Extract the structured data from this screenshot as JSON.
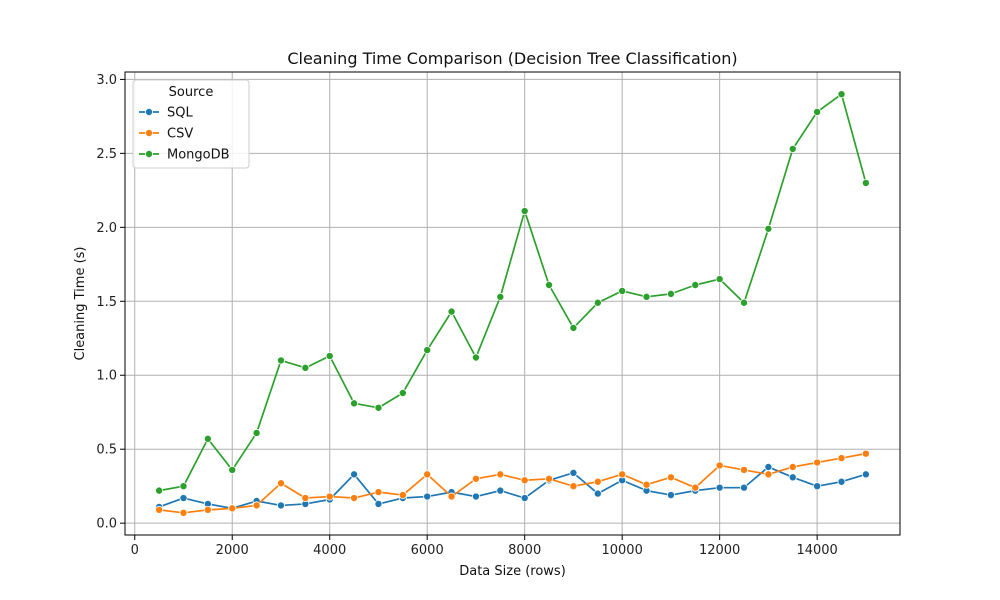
{
  "chart_data": {
    "type": "line",
    "title": "Cleaning Time Comparison (Decision Tree Classification)",
    "xlabel": "Data Size (rows)",
    "ylabel": "Cleaning Time (s)",
    "xlim": [
      -200,
      15700
    ],
    "ylim": [
      -0.08,
      3.05
    ],
    "xticks": [
      0,
      2000,
      4000,
      6000,
      8000,
      10000,
      12000,
      14000
    ],
    "xtick_labels": [
      "0",
      "2000",
      "4000",
      "6000",
      "8000",
      "10000",
      "12000",
      "14000"
    ],
    "yticks": [
      0.0,
      0.5,
      1.0,
      1.5,
      2.0,
      2.5,
      3.0
    ],
    "ytick_labels": [
      "0.0",
      "0.5",
      "1.0",
      "1.5",
      "2.0",
      "2.5",
      "3.0"
    ],
    "grid": true,
    "legend": {
      "title": "Source",
      "placement": "top-left"
    },
    "x": [
      500,
      1000,
      1500,
      2000,
      2500,
      3000,
      3500,
      4000,
      4500,
      5000,
      5500,
      6000,
      6500,
      7000,
      7500,
      8000,
      8500,
      9000,
      9500,
      10000,
      10500,
      11000,
      11500,
      12000,
      12500,
      13000,
      13500,
      14000,
      14500,
      15000
    ],
    "series": [
      {
        "name": "SQL",
        "color": "#1f77b4",
        "values": [
          0.11,
          0.17,
          0.13,
          0.1,
          0.15,
          0.12,
          0.13,
          0.16,
          0.33,
          0.13,
          0.17,
          0.18,
          0.21,
          0.18,
          0.22,
          0.17,
          0.29,
          0.34,
          0.2,
          0.29,
          0.22,
          0.19,
          0.22,
          0.24,
          0.24,
          0.38,
          0.31,
          0.25,
          0.28,
          0.33
        ]
      },
      {
        "name": "CSV",
        "color": "#ff7f0e",
        "values": [
          0.09,
          0.07,
          0.09,
          0.1,
          0.12,
          0.27,
          0.17,
          0.18,
          0.17,
          0.21,
          0.19,
          0.33,
          0.18,
          0.3,
          0.33,
          0.29,
          0.3,
          0.25,
          0.28,
          0.33,
          0.26,
          0.31,
          0.24,
          0.39,
          0.36,
          0.33,
          0.38,
          0.41,
          0.44,
          0.47
        ]
      },
      {
        "name": "MongoDB",
        "color": "#2ca02c",
        "values": [
          0.22,
          0.25,
          0.57,
          0.36,
          0.61,
          1.1,
          1.05,
          1.13,
          0.81,
          0.78,
          0.88,
          1.17,
          1.43,
          1.12,
          1.53,
          2.11,
          1.61,
          1.32,
          1.49,
          1.57,
          1.53,
          1.55,
          1.61,
          1.65,
          1.49,
          1.99,
          2.53,
          2.78,
          2.9,
          2.3
        ]
      }
    ]
  }
}
